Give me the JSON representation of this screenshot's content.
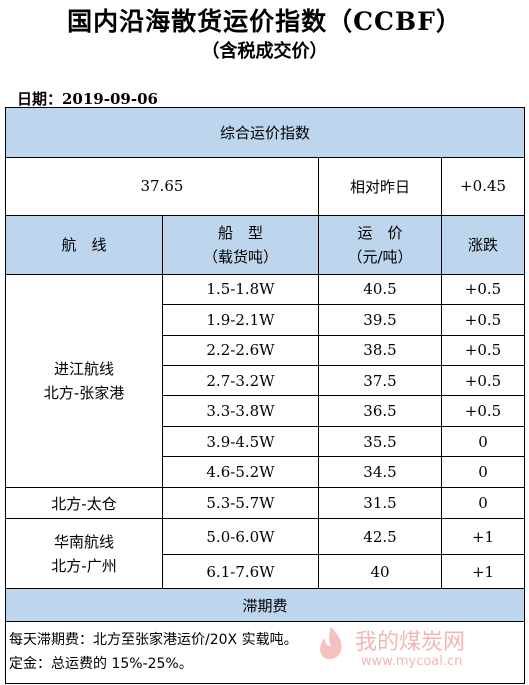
{
  "header": {
    "title": "国内沿海散货运价指数（CCBF）",
    "subtitle": "（含税成交价）",
    "date": "日期：2019-09-06"
  },
  "index": {
    "section_title": "综合运价指数",
    "value": "37.65",
    "compare_label": "相对昨日",
    "change": "+0.45"
  },
  "columns": {
    "route": "航　线",
    "ship_type_1": "船　型",
    "ship_type_2": "（载货吨）",
    "price_1": "运　价",
    "price_2": "（元/吨）",
    "change": "涨跌"
  },
  "routes": {
    "r1_line1": "进江航线",
    "r1_line2": "北方-张家港",
    "r2": "北方-太仓",
    "r3_line1": "华南航线",
    "r3_line2": "北方-广州"
  },
  "rows": [
    {
      "ship": "1.5-1.8W",
      "price": "40.5",
      "change": "+0.5"
    },
    {
      "ship": "1.9-2.1W",
      "price": "39.5",
      "change": "+0.5"
    },
    {
      "ship": "2.2-2.6W",
      "price": "38.5",
      "change": "+0.5"
    },
    {
      "ship": "2.7-3.2W",
      "price": "37.5",
      "change": "+0.5"
    },
    {
      "ship": "3.3-3.8W",
      "price": "36.5",
      "change": "+0.5"
    },
    {
      "ship": "3.9-4.5W",
      "price": "35.5",
      "change": "0"
    },
    {
      "ship": "4.6-5.2W",
      "price": "34.5",
      "change": "0"
    },
    {
      "ship": "5.3-5.7W",
      "price": "31.5",
      "change": "0"
    },
    {
      "ship": "5.0-6.0W",
      "price": "42.5",
      "change": "+1"
    },
    {
      "ship": "6.1-7.6W",
      "price": "40",
      "change": "+1"
    }
  ],
  "demurrage": {
    "title": "滞期费",
    "note1": "每天滞期费：北方至张家港运价/20X 实载吨。",
    "note2": "定金：总运费的 15%-25%。"
  },
  "watermark": {
    "logo_icon": "flame-logo-icon",
    "text": "我的煤炭网",
    "url": "www.mycoal.cn",
    "color": "#d6342c"
  },
  "colors": {
    "header_fill": "#bdd6ee",
    "border": "#000000"
  }
}
